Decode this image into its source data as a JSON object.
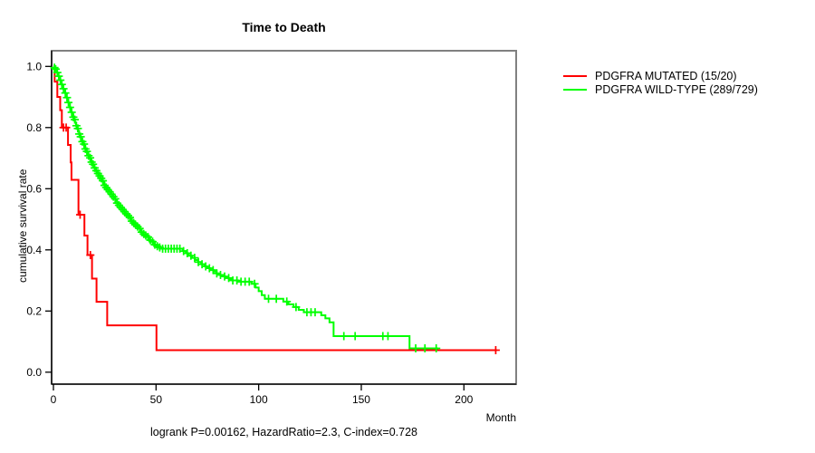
{
  "chart_data": {
    "type": "line",
    "subtype": "kaplan-meier-survival",
    "title": "Time to Death",
    "xlabel": "Month",
    "ylabel": "cumulative survival rate",
    "caption": "logrank P=0.00162, HazardRatio=2.3, C-index=0.728",
    "stats": {
      "logrank_p": "0.00162",
      "hazard_ratio": "2.3",
      "c_index": "0.728"
    },
    "xlim": [
      0,
      225
    ],
    "ylim": [
      0,
      1
    ],
    "x_ticks": [
      0,
      50,
      100,
      150,
      200
    ],
    "y_ticks": [
      0.0,
      0.2,
      0.4,
      0.6,
      0.8,
      1.0
    ],
    "grid": false,
    "legend_position": "outside-top-right",
    "series": [
      {
        "name": "PDGFRA MUTATED (15/20)",
        "color": "#ff0000",
        "n": 20,
        "events": 15,
        "points": [
          [
            0,
            1.0
          ],
          [
            0.6,
            0.95
          ],
          [
            1.9,
            0.9
          ],
          [
            3.3,
            0.857
          ],
          [
            4.1,
            0.8
          ],
          [
            7.1,
            0.743
          ],
          [
            8.4,
            0.686
          ],
          [
            8.8,
            0.629
          ],
          [
            12.2,
            0.515
          ],
          [
            15.1,
            0.447
          ],
          [
            16.6,
            0.383
          ],
          [
            18.8,
            0.306
          ],
          [
            21,
            0.23
          ],
          [
            26.2,
            0.153
          ],
          [
            50.2,
            0.072
          ],
          [
            216,
            0.072
          ]
        ],
        "censor_times": [
          4.9,
          6.2,
          13.0,
          18.0,
          215.5
        ]
      },
      {
        "name": "PDGFRA WILD-TYPE (289/729)",
        "color": "#00ff00",
        "n": 729,
        "events": 289,
        "points": [
          [
            0,
            1.0
          ],
          [
            0.4,
            0.996
          ],
          [
            0.8,
            0.991
          ],
          [
            1.2,
            0.986
          ],
          [
            1.6,
            0.98
          ],
          [
            2,
            0.974
          ],
          [
            2.4,
            0.968
          ],
          [
            2.8,
            0.962
          ],
          [
            3.2,
            0.955
          ],
          [
            3.6,
            0.948
          ],
          [
            4,
            0.941
          ],
          [
            4.4,
            0.934
          ],
          [
            4.8,
            0.927
          ],
          [
            5.2,
            0.92
          ],
          [
            5.6,
            0.913
          ],
          [
            6,
            0.906
          ],
          [
            6.4,
            0.898
          ],
          [
            6.8,
            0.89
          ],
          [
            7.2,
            0.882
          ],
          [
            7.6,
            0.874
          ],
          [
            8,
            0.866
          ],
          [
            8.4,
            0.858
          ],
          [
            8.8,
            0.85
          ],
          [
            9.2,
            0.842
          ],
          [
            9.6,
            0.834
          ],
          [
            10,
            0.826
          ],
          [
            10.5,
            0.816
          ],
          [
            11,
            0.806
          ],
          [
            11.5,
            0.797
          ],
          [
            12,
            0.788
          ],
          [
            12.5,
            0.779
          ],
          [
            13,
            0.77
          ],
          [
            13.5,
            0.762
          ],
          [
            14,
            0.754
          ],
          [
            14.5,
            0.746
          ],
          [
            15,
            0.738
          ],
          [
            15.5,
            0.73
          ],
          [
            16,
            0.722
          ],
          [
            16.5,
            0.715
          ],
          [
            17,
            0.708
          ],
          [
            17.5,
            0.701
          ],
          [
            18,
            0.694
          ],
          [
            18.5,
            0.687
          ],
          [
            19,
            0.68
          ],
          [
            19.5,
            0.674
          ],
          [
            20,
            0.668
          ],
          [
            20.7,
            0.659
          ],
          [
            21.4,
            0.65
          ],
          [
            22.1,
            0.642
          ],
          [
            22.8,
            0.634
          ],
          [
            23.5,
            0.626
          ],
          [
            24.2,
            0.618
          ],
          [
            24.9,
            0.611
          ],
          [
            25.6,
            0.604
          ],
          [
            26.3,
            0.597
          ],
          [
            27,
            0.59
          ],
          [
            27.8,
            0.582
          ],
          [
            28.6,
            0.574
          ],
          [
            29.4,
            0.567
          ],
          [
            30.2,
            0.56
          ],
          [
            31,
            0.553
          ],
          [
            31.8,
            0.546
          ],
          [
            32.6,
            0.539
          ],
          [
            33.4,
            0.532
          ],
          [
            34.2,
            0.525
          ],
          [
            35,
            0.518
          ],
          [
            35.8,
            0.512
          ],
          [
            36.6,
            0.506
          ],
          [
            37.4,
            0.5
          ],
          [
            38.2,
            0.494
          ],
          [
            39,
            0.488
          ],
          [
            39.8,
            0.482
          ],
          [
            40.6,
            0.476
          ],
          [
            41.4,
            0.47
          ],
          [
            42.2,
            0.464
          ],
          [
            43,
            0.458
          ],
          [
            43.8,
            0.452
          ],
          [
            44.6,
            0.447
          ],
          [
            45.4,
            0.442
          ],
          [
            46.2,
            0.437
          ],
          [
            47,
            0.432
          ],
          [
            47.8,
            0.427
          ],
          [
            48.6,
            0.422
          ],
          [
            49.4,
            0.417
          ],
          [
            50.2,
            0.412
          ],
          [
            51.2,
            0.408
          ],
          [
            52.5,
            0.404
          ],
          [
            63,
            0.396
          ],
          [
            64.5,
            0.389
          ],
          [
            66,
            0.381
          ],
          [
            67.5,
            0.374
          ],
          [
            69,
            0.367
          ],
          [
            70.5,
            0.36
          ],
          [
            72,
            0.353
          ],
          [
            73.5,
            0.346
          ],
          [
            75,
            0.34
          ],
          [
            76.5,
            0.334
          ],
          [
            78,
            0.329
          ],
          [
            79.5,
            0.323
          ],
          [
            81,
            0.318
          ],
          [
            82.5,
            0.313
          ],
          [
            84,
            0.308
          ],
          [
            85.5,
            0.304
          ],
          [
            87,
            0.3
          ],
          [
            90,
            0.296
          ],
          [
            96.5,
            0.289
          ],
          [
            98.5,
            0.277
          ],
          [
            100,
            0.265
          ],
          [
            101.5,
            0.252
          ],
          [
            103,
            0.24
          ],
          [
            112,
            0.231
          ],
          [
            114.5,
            0.222
          ],
          [
            117,
            0.213
          ],
          [
            119.5,
            0.204
          ],
          [
            122,
            0.196
          ],
          [
            130.5,
            0.186
          ],
          [
            132.5,
            0.176
          ],
          [
            134.5,
            0.163
          ],
          [
            136.5,
            0.118
          ],
          [
            173.5,
            0.078
          ],
          [
            187.5,
            0.078
          ]
        ],
        "censor_times": [
          0.5,
          1.1,
          1.9,
          2.6,
          3.4,
          4.1,
          4.9,
          5.8,
          6.6,
          7.3,
          8.1,
          8.9,
          9.7,
          10.4,
          11.2,
          11.9,
          12.6,
          13.3,
          14.1,
          14.9,
          15.6,
          16.3,
          17.1,
          17.9,
          18.6,
          19.3,
          20.1,
          20.9,
          21.7,
          22.5,
          23.3,
          24.1,
          24.9,
          25.7,
          26.5,
          27.4,
          28.3,
          29.2,
          30.1,
          31.0,
          31.9,
          32.8,
          33.7,
          34.6,
          35.5,
          36.4,
          37.3,
          38.2,
          39.1,
          40.0,
          41.0,
          42.0,
          43.0,
          44.0,
          45.0,
          46.1,
          47.2,
          48.3,
          49.4,
          50.6,
          51.8,
          53.2,
          54.6,
          56.0,
          57.4,
          58.8,
          60.2,
          61.6,
          63.4,
          65.2,
          67.0,
          68.8,
          70.6,
          72.4,
          74.2,
          76.0,
          77.8,
          79.6,
          81.4,
          83.4,
          85.4,
          87.4,
          89.4,
          91.4,
          93.4,
          95.4,
          98.0,
          104.8,
          108.6,
          113.7,
          118.2,
          123.5,
          125.5,
          127.5,
          141.5,
          147.0,
          160.5,
          163.0,
          176.5,
          181.0,
          186.5
        ]
      }
    ],
    "axis_box_color": "#808080",
    "axis_line_color": "#000000"
  }
}
